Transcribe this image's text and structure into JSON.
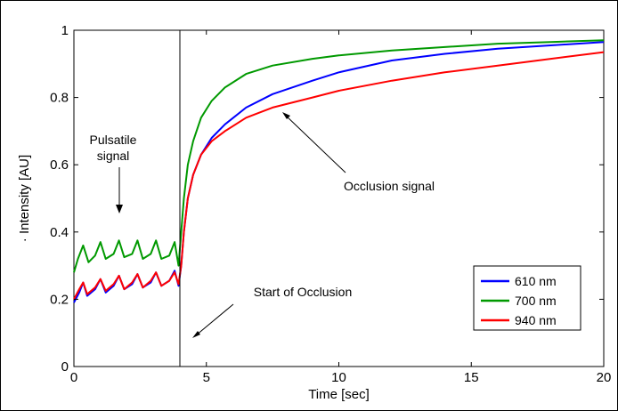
{
  "chart_data": {
    "type": "line",
    "xlabel": "Time [sec]",
    "ylabel": "· Intensity [AU]",
    "xlim": [
      0,
      20
    ],
    "ylim": [
      0,
      1
    ],
    "xticks": [
      "0",
      "5",
      "10",
      "15",
      "20"
    ],
    "yticks": [
      "0",
      "0.2",
      "0.4",
      "0.6",
      "0.8",
      "1"
    ],
    "grid": false,
    "legend_position": "bottom-right",
    "occlusion_start": 4,
    "series": [
      {
        "name": "610 nm",
        "color": "#0000ff",
        "points": [
          [
            0,
            0.19
          ],
          [
            0.2,
            0.22
          ],
          [
            0.35,
            0.25
          ],
          [
            0.5,
            0.21
          ],
          [
            0.8,
            0.23
          ],
          [
            1.0,
            0.26
          ],
          [
            1.2,
            0.22
          ],
          [
            1.5,
            0.24
          ],
          [
            1.7,
            0.27
          ],
          [
            1.9,
            0.23
          ],
          [
            2.2,
            0.245
          ],
          [
            2.4,
            0.275
          ],
          [
            2.6,
            0.235
          ],
          [
            2.9,
            0.25
          ],
          [
            3.1,
            0.28
          ],
          [
            3.3,
            0.24
          ],
          [
            3.6,
            0.255
          ],
          [
            3.8,
            0.285
          ],
          [
            3.95,
            0.24
          ],
          [
            4.05,
            0.3
          ],
          [
            4.15,
            0.4
          ],
          [
            4.3,
            0.5
          ],
          [
            4.5,
            0.57
          ],
          [
            4.8,
            0.63
          ],
          [
            5.2,
            0.68
          ],
          [
            5.7,
            0.72
          ],
          [
            6.5,
            0.77
          ],
          [
            7.5,
            0.81
          ],
          [
            9,
            0.85
          ],
          [
            10,
            0.875
          ],
          [
            12,
            0.91
          ],
          [
            14,
            0.93
          ],
          [
            16,
            0.945
          ],
          [
            18,
            0.955
          ],
          [
            20,
            0.965
          ]
        ]
      },
      {
        "name": "700 nm",
        "color": "#009900",
        "points": [
          [
            0,
            0.28
          ],
          [
            0.15,
            0.32
          ],
          [
            0.35,
            0.36
          ],
          [
            0.55,
            0.31
          ],
          [
            0.8,
            0.33
          ],
          [
            1.0,
            0.37
          ],
          [
            1.2,
            0.32
          ],
          [
            1.5,
            0.335
          ],
          [
            1.7,
            0.375
          ],
          [
            1.9,
            0.325
          ],
          [
            2.2,
            0.335
          ],
          [
            2.4,
            0.375
          ],
          [
            2.6,
            0.32
          ],
          [
            2.9,
            0.335
          ],
          [
            3.1,
            0.375
          ],
          [
            3.3,
            0.32
          ],
          [
            3.6,
            0.33
          ],
          [
            3.8,
            0.37
          ],
          [
            3.95,
            0.3
          ],
          [
            4.05,
            0.4
          ],
          [
            4.15,
            0.5
          ],
          [
            4.3,
            0.6
          ],
          [
            4.5,
            0.67
          ],
          [
            4.8,
            0.74
          ],
          [
            5.2,
            0.79
          ],
          [
            5.7,
            0.83
          ],
          [
            6.5,
            0.87
          ],
          [
            7.5,
            0.895
          ],
          [
            9,
            0.915
          ],
          [
            10,
            0.925
          ],
          [
            12,
            0.94
          ],
          [
            14,
            0.95
          ],
          [
            16,
            0.96
          ],
          [
            18,
            0.965
          ],
          [
            20,
            0.97
          ]
        ]
      },
      {
        "name": "940 nm",
        "color": "#ff0000",
        "points": [
          [
            0,
            0.2
          ],
          [
            0.2,
            0.23
          ],
          [
            0.35,
            0.25
          ],
          [
            0.5,
            0.215
          ],
          [
            0.8,
            0.235
          ],
          [
            1.0,
            0.26
          ],
          [
            1.2,
            0.225
          ],
          [
            1.5,
            0.245
          ],
          [
            1.7,
            0.27
          ],
          [
            1.9,
            0.23
          ],
          [
            2.2,
            0.25
          ],
          [
            2.4,
            0.275
          ],
          [
            2.6,
            0.235
          ],
          [
            2.9,
            0.255
          ],
          [
            3.1,
            0.28
          ],
          [
            3.3,
            0.24
          ],
          [
            3.6,
            0.255
          ],
          [
            3.8,
            0.28
          ],
          [
            3.95,
            0.245
          ],
          [
            4.05,
            0.3
          ],
          [
            4.15,
            0.4
          ],
          [
            4.3,
            0.5
          ],
          [
            4.5,
            0.57
          ],
          [
            4.8,
            0.63
          ],
          [
            5.2,
            0.67
          ],
          [
            5.7,
            0.7
          ],
          [
            6.5,
            0.74
          ],
          [
            7.5,
            0.77
          ],
          [
            9,
            0.8
          ],
          [
            10,
            0.82
          ],
          [
            12,
            0.85
          ],
          [
            14,
            0.875
          ],
          [
            16,
            0.895
          ],
          [
            18,
            0.915
          ],
          [
            20,
            0.935
          ]
        ]
      }
    ],
    "annotations": [
      {
        "label": "Pulsatile signal",
        "lines": [
          "Pulsatile",
          "signal"
        ]
      },
      {
        "label": "Occlusion signal",
        "lines": [
          "Occlusion signal"
        ]
      },
      {
        "label": "Start of Occlusion",
        "lines": [
          "Start of Occlusion"
        ]
      }
    ]
  }
}
